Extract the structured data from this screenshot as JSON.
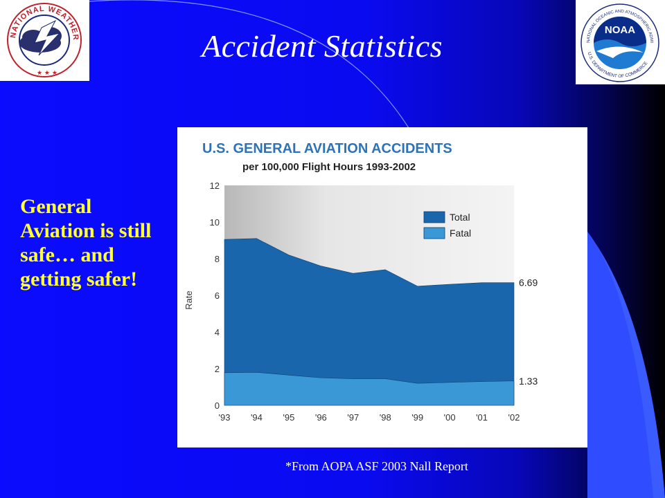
{
  "slide": {
    "title": "Accident Statistics",
    "side_text": "General Aviation is still safe… and getting safer!",
    "source": "*From AOPA ASF 2003 Nall Report"
  },
  "logos": {
    "left": "NATIONAL WEATHER SERVICE",
    "right_top": "NATIONAL OCEANIC AND ATMOSPHERIC ADMINISTRATION",
    "right_center": "NOAA",
    "right_bottom": "U.S. DEPARTMENT OF COMMERCE"
  },
  "colors": {
    "total": "#1a66ad",
    "fatal": "#3a98d6",
    "title_blue": "#2e72b8",
    "accent_yellow": "#ffff33"
  },
  "chart_data": {
    "type": "area",
    "title": "U.S. GENERAL AVIATION ACCIDENTS",
    "subtitle": "per 100,000 Flight Hours 1993-2002",
    "ylabel": "Rate",
    "xlabel": "",
    "ylim": [
      0,
      12
    ],
    "yticks": [
      0,
      2,
      4,
      6,
      8,
      10,
      12
    ],
    "categories": [
      "'93",
      "'94",
      "'95",
      "'96",
      "'97",
      "'98",
      "'99",
      "'00",
      "'01",
      "'02"
    ],
    "series": [
      {
        "name": "Total",
        "values": [
          9.05,
          9.1,
          8.2,
          7.6,
          7.2,
          7.4,
          6.5,
          6.6,
          6.69,
          6.69
        ]
      },
      {
        "name": "Fatal",
        "values": [
          1.78,
          1.8,
          1.65,
          1.5,
          1.45,
          1.45,
          1.2,
          1.25,
          1.3,
          1.33
        ]
      }
    ],
    "end_labels": [
      "6.69",
      "1.33"
    ],
    "legend": "top-right",
    "grid": false
  }
}
